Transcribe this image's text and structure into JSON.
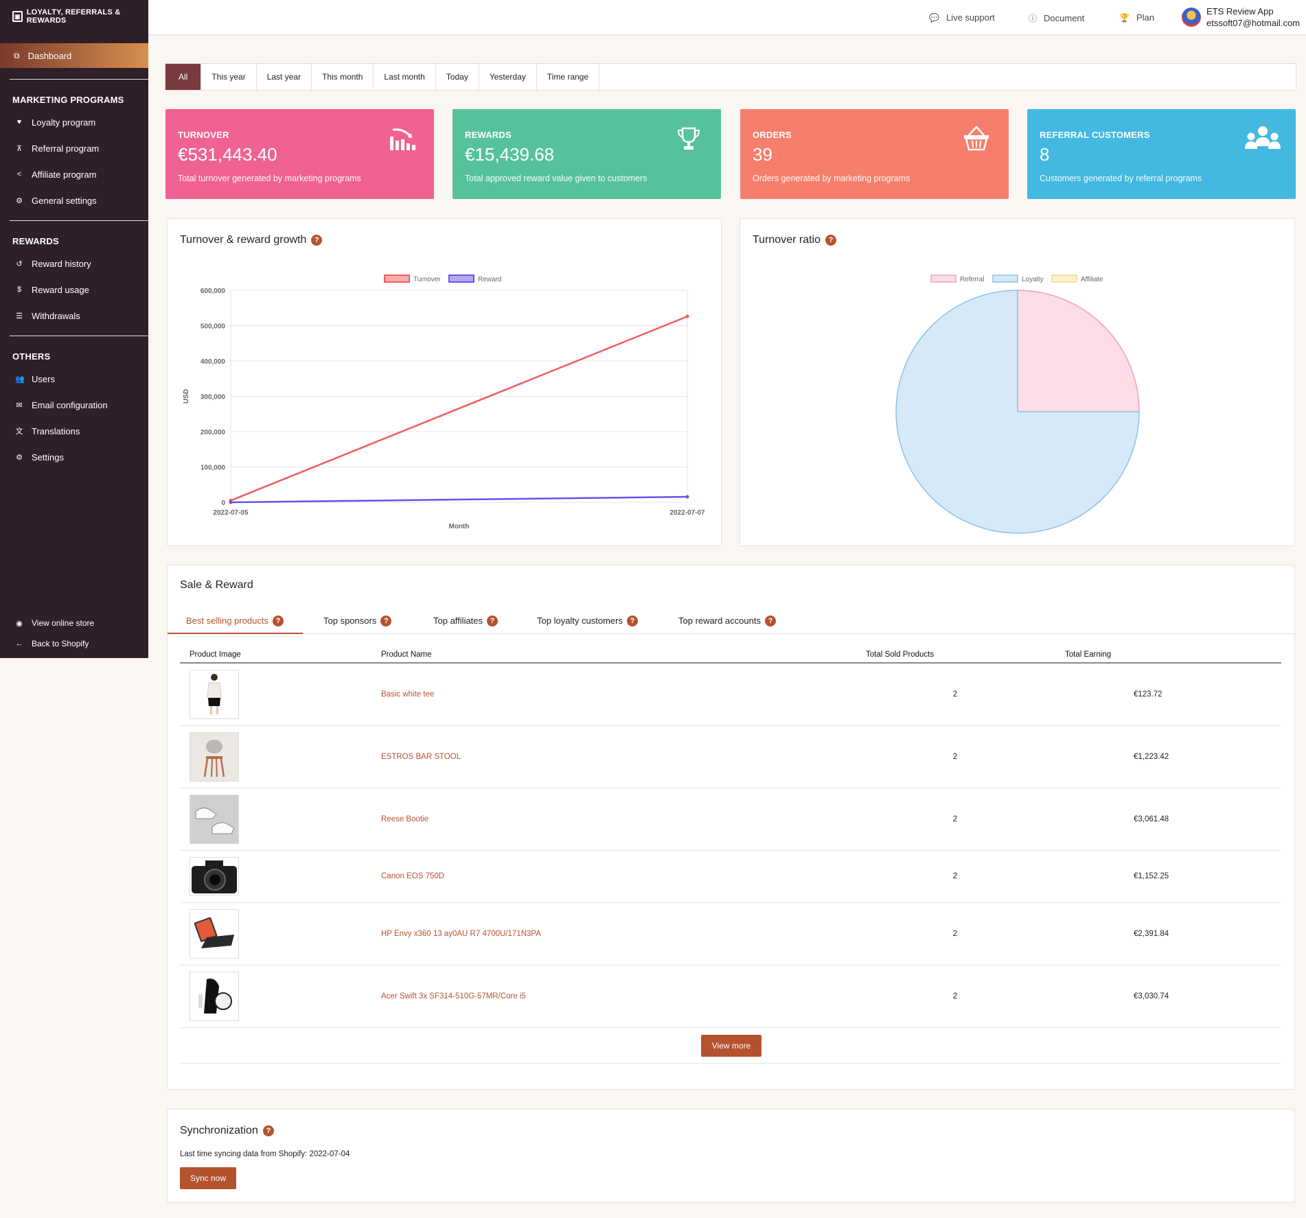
{
  "app": {
    "logo_text": "LOYALTY, REFERRALS & REWARDS"
  },
  "sidebar": {
    "dashboard": "Dashboard",
    "sections": [
      {
        "title": "MARKETING PROGRAMS",
        "items": [
          "Loyalty program",
          "Referral program",
          "Affiliate program",
          "General settings"
        ]
      },
      {
        "title": "REWARDS",
        "items": [
          "Reward history",
          "Reward usage",
          "Withdrawals"
        ]
      },
      {
        "title": "OTHERS",
        "items": [
          "Users",
          "Email configuration",
          "Translations",
          "Settings"
        ]
      }
    ],
    "bottom": [
      "View online store",
      "Back to Shopify"
    ]
  },
  "topbar": {
    "live_support": "Live support",
    "document": "Document",
    "plan": "Plan",
    "account_name": "ETS Review App",
    "account_email": "etssoft07@hotmail.com"
  },
  "filters": [
    "All",
    "This year",
    "Last year",
    "This month",
    "Last month",
    "Today",
    "Yesterday",
    "Time range"
  ],
  "cards": [
    {
      "label": "TURNOVER",
      "value": "€531,443.40",
      "desc": "Total turnover generated by marketing programs",
      "icon": "chart-icon"
    },
    {
      "label": "REWARDS",
      "value": "€15,439.68",
      "desc": "Total approved reward value given to customers",
      "icon": "trophy-icon"
    },
    {
      "label": "ORDERS",
      "value": "39",
      "desc": "Orders generated by marketing programs",
      "icon": "basket-icon"
    },
    {
      "label": "REFERRAL CUSTOMERS",
      "value": "8",
      "desc": "Customers generated by referral programs",
      "icon": "users-icon"
    }
  ],
  "growth_panel": {
    "title": "Turnover & reward growth"
  },
  "ratio_panel": {
    "title": "Turnover ratio"
  },
  "chart_data": [
    {
      "type": "line",
      "x": [
        "2022-07-05",
        "2022-07-07"
      ],
      "series": [
        {
          "name": "Turnover",
          "values": [
            5000,
            526000
          ],
          "color": "#f25c5c"
        },
        {
          "name": "Reward",
          "values": [
            0,
            15440
          ],
          "color": "#6b4ff0"
        }
      ],
      "xlabel": "Month",
      "ylabel": "USD",
      "ylim": [
        0,
        600000
      ],
      "yticks": [
        "0",
        "100,000",
        "200,000",
        "300,000",
        "400,000",
        "500,000",
        "600,000"
      ],
      "legend": "top"
    },
    {
      "type": "pie",
      "categories": [
        "Referral",
        "Loyalty",
        "Affiliate"
      ],
      "values": [
        25,
        75,
        0
      ],
      "colors": [
        "#fcdce5",
        "#d6e9f8",
        "#fdf0cd"
      ],
      "border_colors": [
        "#f3a0b6",
        "#8ac2e8",
        "#f5d68e"
      ],
      "legend": "top"
    }
  ],
  "sale_reward": {
    "title": "Sale & Reward",
    "tabs": [
      "Best selling products",
      "Top sponsors",
      "Top affiliates",
      "Top loyalty customers",
      "Top reward accounts"
    ],
    "columns": [
      "Product Image",
      "Product Name",
      "Total Sold Products",
      "Total Earning"
    ],
    "rows": [
      {
        "name": "Basic white tee",
        "sold": "2",
        "earning": "€123.72",
        "image": "woman-icon"
      },
      {
        "name": "ESTROS BAR STOOL",
        "sold": "2",
        "earning": "€1,223.42",
        "image": "stool-icon"
      },
      {
        "name": "Reese Bootie",
        "sold": "2",
        "earning": "€3,061.48",
        "image": "sneaker-icon"
      },
      {
        "name": "Canon EOS 750D",
        "sold": "2",
        "earning": "€1,152.25",
        "image": "camera-icon"
      },
      {
        "name": "HP Envy x360 13 ay0AU R7 4700U/171N3PA",
        "sold": "2",
        "earning": "€2,391.84",
        "image": "tablet-icon"
      },
      {
        "name": "Acer Swift 3x SF314-510G-57MR/Core i5",
        "sold": "2",
        "earning": "€3,030.74",
        "image": "gadget-icon"
      }
    ],
    "view_more": "View more"
  },
  "sync": {
    "title": "Synchronization",
    "text": "Last time syncing data from Shopify: 2022-07-04",
    "button": "Sync now"
  }
}
